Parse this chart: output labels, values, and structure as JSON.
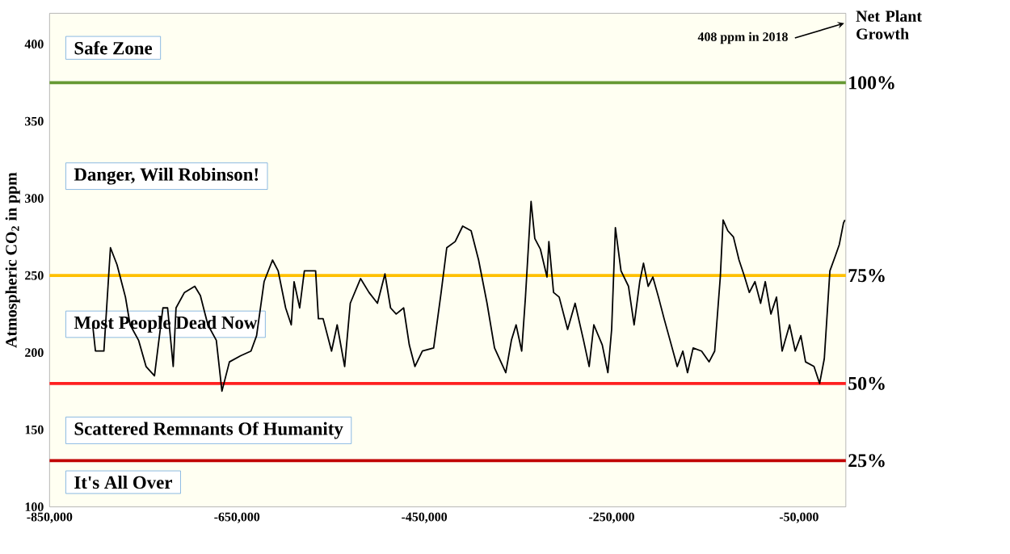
{
  "chart_data": {
    "type": "line",
    "ylabel": "Atmospheric CO$_{2}$ in ppm",
    "annotations": [
      "Safe Zone",
      "Danger, Will Robinson!",
      "Most People Dead Now",
      "Scattered Remnants Of Humanity",
      "It's All Over",
      "Net Plant Growth",
      "408 ppm in 2018",
      "100%",
      "75%",
      "50%",
      "25%"
    ],
    "x": [
      -804000,
      -801000,
      -792000,
      -785000,
      -778000,
      -772000,
      -769000,
      -764000,
      -755000,
      -747000,
      -738000,
      -729000,
      -724000,
      -718000,
      -715000,
      -706000,
      -695000,
      -689000,
      -681000,
      -672000,
      -666000,
      -658000,
      -646000,
      -635000,
      -629000,
      -621000,
      -612000,
      -606000,
      -598000,
      -592000,
      -589000,
      -583000,
      -578000,
      -566000,
      -563000,
      -558000,
      -549000,
      -543000,
      -535000,
      -529000,
      -518000,
      -509000,
      -500000,
      -492000,
      -486000,
      -480000,
      -472000,
      -466000,
      -460000,
      -452000,
      -440000,
      -432000,
      -426000,
      -417000,
      -409000,
      -400000,
      -392000,
      -383000,
      -375000,
      -363000,
      -357000,
      -352000,
      -346000,
      -342000,
      -336000,
      -332000,
      -326000,
      -319000,
      -317000,
      -312000,
      -306000,
      -297000,
      -289000,
      -280000,
      -274000,
      -269000,
      -260000,
      -254000,
      -250000,
      -246000,
      -240000,
      -232000,
      -226000,
      -220000,
      -216000,
      -211000,
      -206000,
      -200000,
      -194000,
      -189000,
      -180000,
      -174000,
      -169000,
      -163000,
      -154000,
      -146000,
      -140000,
      -134000,
      -131000,
      -126000,
      -120000,
      -114000,
      -108000,
      -103000,
      -97000,
      -91000,
      -86000,
      -80000,
      -74000,
      -68000,
      -60000,
      -54000,
      -48000,
      -43000,
      -34000,
      -28000,
      -23000,
      -17000,
      -11000,
      -7000,
      -2500,
      -1000
    ],
    "values": [
      218,
      201,
      201,
      268,
      257,
      243,
      236,
      218,
      208,
      191,
      185,
      229,
      229,
      191,
      229,
      239,
      243,
      237,
      218,
      208,
      175,
      194,
      198,
      201,
      211,
      246,
      260,
      253,
      229,
      218,
      246,
      229,
      253,
      253,
      222,
      222,
      201,
      218,
      191,
      232,
      248,
      239,
      232,
      251,
      229,
      225,
      229,
      205,
      191,
      201,
      203,
      239,
      268,
      272,
      282,
      279,
      260,
      232,
      203,
      187,
      208,
      218,
      201,
      236,
      298,
      274,
      267,
      249,
      272,
      239,
      236,
      215,
      232,
      208,
      191,
      218,
      205,
      187,
      215,
      281,
      253,
      243,
      218,
      246,
      258,
      243,
      249,
      236,
      222,
      211,
      191,
      201,
      187,
      203,
      201,
      194,
      201,
      249,
      286,
      279,
      275,
      260,
      249,
      239,
      246,
      232,
      246,
      225,
      236,
      201,
      218,
      201,
      211,
      194,
      191,
      180,
      196,
      253,
      263,
      270,
      284,
      286
    ],
    "color": "#000000",
    "line_style": "solid",
    "marker": "none",
    "grid": false,
    "xlim": [
      -850000,
      0
    ],
    "ylim": [
      100,
      420
    ],
    "xticks": [
      {
        "value": -850000,
        "label": "-850,000"
      },
      {
        "value": -650000,
        "label": "-650,000"
      },
      {
        "value": -450000,
        "label": "-450,000"
      },
      {
        "value": -250000,
        "label": "-250,000"
      },
      {
        "value": -50000,
        "label": "-50,000"
      }
    ],
    "yticks": [
      100,
      150,
      200,
      250,
      300,
      350,
      400
    ],
    "ref_lines": [
      {
        "axis": "y",
        "value": 375,
        "color": "#669933"
      },
      {
        "axis": "y",
        "value": 250,
        "color": "#ffc000"
      },
      {
        "axis": "y",
        "value": 180,
        "color": "#ff2020"
      },
      {
        "axis": "y",
        "value": 130,
        "color": "#c00000"
      }
    ]
  }
}
